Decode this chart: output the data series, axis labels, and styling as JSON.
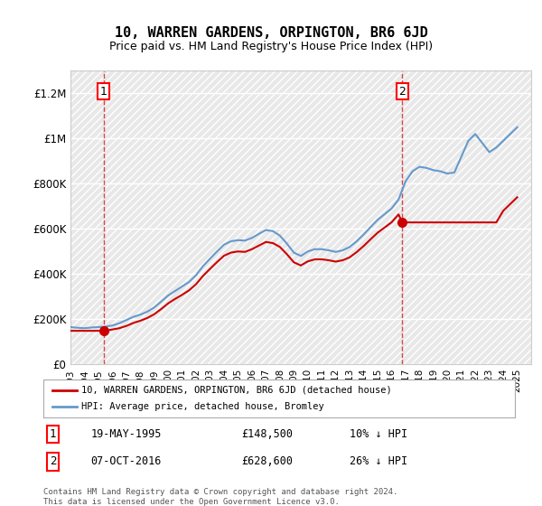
{
  "title": "10, WARREN GARDENS, ORPINGTON, BR6 6JD",
  "subtitle": "Price paid vs. HM Land Registry's House Price Index (HPI)",
  "ylabel": "",
  "ylim": [
    0,
    1300000
  ],
  "yticks": [
    0,
    200000,
    400000,
    600000,
    800000,
    1000000,
    1200000
  ],
  "ytick_labels": [
    "£0",
    "£200K",
    "£400K",
    "£600K",
    "£800K",
    "£1M",
    "£1.2M"
  ],
  "xlim_start": 1993.0,
  "xlim_end": 2026.0,
  "background_color": "#ffffff",
  "plot_bg_color": "#f0f0f0",
  "hatch_color": "#d0d0d0",
  "grid_color": "#ffffff",
  "hpi_color": "#6699cc",
  "price_color": "#cc0000",
  "marker_color": "#cc0000",
  "annotation_color": "#cc0000",
  "legend_label_price": "10, WARREN GARDENS, ORPINGTON, BR6 6JD (detached house)",
  "legend_label_hpi": "HPI: Average price, detached house, Bromley",
  "footer": "Contains HM Land Registry data © Crown copyright and database right 2024.\nThis data is licensed under the Open Government Licence v3.0.",
  "sale1_date": 1995.38,
  "sale1_price": 148500,
  "sale1_label": "1",
  "sale1_text": "19-MAY-1995     £148,500     10% ↓ HPI",
  "sale2_date": 2016.77,
  "sale2_price": 628600,
  "sale2_label": "2",
  "sale2_text": "07-OCT-2016     £628,600     26% ↓ HPI",
  "hpi_years": [
    1993.0,
    1993.5,
    1994.0,
    1994.5,
    1995.0,
    1995.5,
    1996.0,
    1996.5,
    1997.0,
    1997.5,
    1998.0,
    1998.5,
    1999.0,
    1999.5,
    2000.0,
    2000.5,
    2001.0,
    2001.5,
    2002.0,
    2002.5,
    2003.0,
    2003.5,
    2004.0,
    2004.5,
    2005.0,
    2005.5,
    2006.0,
    2006.5,
    2007.0,
    2007.5,
    2008.0,
    2008.5,
    2009.0,
    2009.5,
    2010.0,
    2010.5,
    2011.0,
    2011.5,
    2012.0,
    2012.5,
    2013.0,
    2013.5,
    2014.0,
    2014.5,
    2015.0,
    2015.5,
    2016.0,
    2016.5,
    2017.0,
    2017.5,
    2018.0,
    2018.5,
    2019.0,
    2019.5,
    2020.0,
    2020.5,
    2021.0,
    2021.5,
    2022.0,
    2022.5,
    2023.0,
    2023.5,
    2024.0,
    2024.5,
    2025.0
  ],
  "hpi_values": [
    165000,
    162000,
    160000,
    163000,
    165000,
    167000,
    172000,
    182000,
    196000,
    210000,
    220000,
    233000,
    252000,
    278000,
    305000,
    325000,
    345000,
    365000,
    395000,
    435000,
    468000,
    500000,
    530000,
    545000,
    550000,
    548000,
    560000,
    578000,
    595000,
    590000,
    570000,
    535000,
    495000,
    480000,
    500000,
    510000,
    510000,
    505000,
    498000,
    505000,
    520000,
    545000,
    575000,
    608000,
    640000,
    665000,
    690000,
    730000,
    810000,
    855000,
    875000,
    870000,
    860000,
    855000,
    845000,
    850000,
    920000,
    990000,
    1020000,
    980000,
    940000,
    960000,
    990000,
    1020000,
    1050000
  ],
  "price_years": [
    1993.0,
    1993.5,
    1994.0,
    1994.5,
    1995.38,
    1995.8,
    1996.5,
    1997.0,
    1997.5,
    1998.0,
    1998.5,
    1999.0,
    1999.5,
    2000.0,
    2000.5,
    2001.0,
    2001.5,
    2002.0,
    2002.5,
    2003.0,
    2003.5,
    2004.0,
    2004.5,
    2005.0,
    2005.5,
    2006.0,
    2006.5,
    2007.0,
    2007.5,
    2008.0,
    2008.5,
    2009.0,
    2009.5,
    2010.0,
    2010.5,
    2011.0,
    2011.5,
    2012.0,
    2012.5,
    2013.0,
    2013.5,
    2014.0,
    2014.5,
    2015.0,
    2015.5,
    2016.0,
    2016.5,
    2016.77,
    2017.0,
    2017.5,
    2018.0,
    2018.5,
    2019.0,
    2019.5,
    2020.0,
    2020.5,
    2021.0,
    2021.5,
    2022.0,
    2022.5,
    2023.0,
    2023.5,
    2024.0,
    2024.5,
    2025.0
  ],
  "price_values": [
    148500,
    148500,
    148500,
    148500,
    148500,
    152000,
    160000,
    170000,
    183000,
    193000,
    205000,
    222000,
    245000,
    270000,
    290000,
    308000,
    328000,
    355000,
    392000,
    423000,
    453000,
    481000,
    495000,
    500000,
    498000,
    510000,
    526000,
    542000,
    537000,
    520000,
    488000,
    452000,
    438000,
    456000,
    465000,
    465000,
    461000,
    455000,
    461000,
    474000,
    497000,
    524000,
    554000,
    583000,
    606000,
    629000,
    664000,
    628600,
    628600,
    628600,
    628600,
    628600,
    628600,
    628600,
    628600,
    628600,
    628600,
    628600,
    628600,
    628600,
    628600,
    628600,
    680000,
    710000,
    740000
  ]
}
